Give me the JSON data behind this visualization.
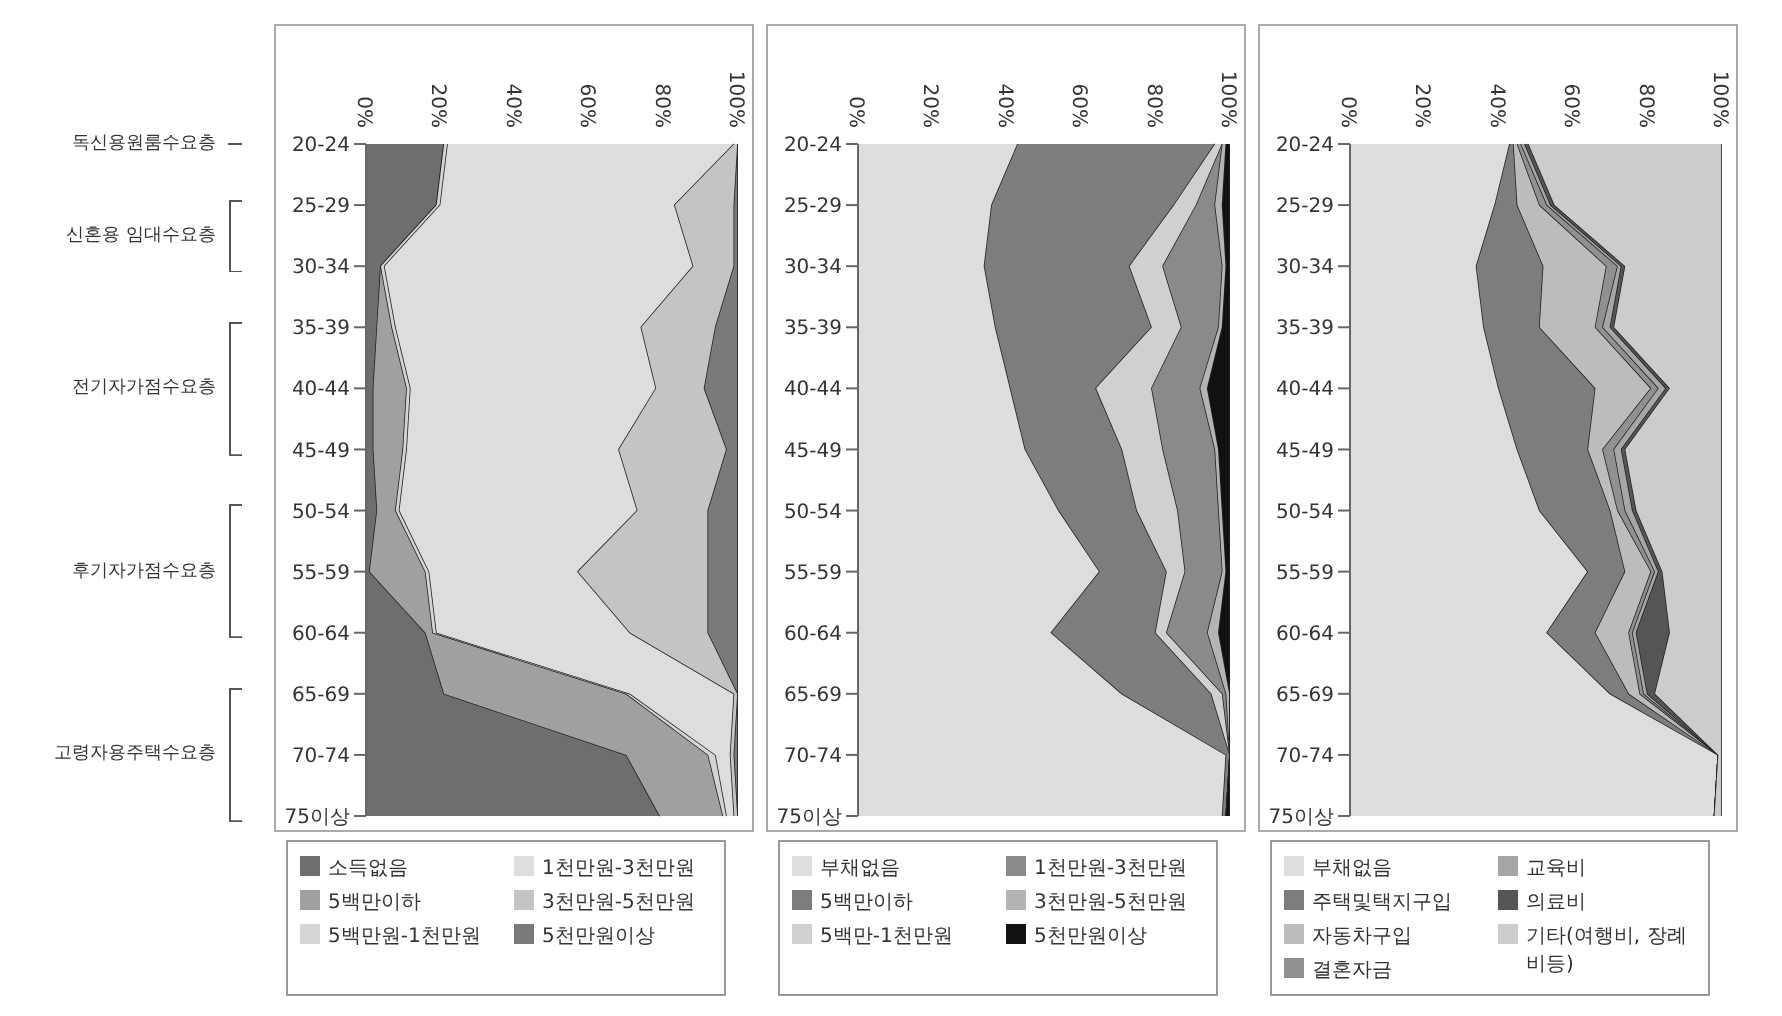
{
  "chart_data": [
    {
      "type": "area",
      "stacked": true,
      "orientation": "horizontal",
      "legend": "bottom",
      "categories": [
        "20-24",
        "25-29",
        "30-34",
        "35-39",
        "40-44",
        "45-49",
        "50-54",
        "55-59",
        "60-64",
        "65-69",
        "70-74",
        "75이상"
      ],
      "xlim": [
        0,
        100
      ],
      "xticks": [
        {
          "value": 0,
          "label": "0%"
        },
        {
          "value": 20,
          "label": "20%"
        },
        {
          "value": 40,
          "label": "40%"
        },
        {
          "value": 60,
          "label": "60%"
        },
        {
          "value": 80,
          "label": "80%"
        },
        {
          "value": 100,
          "label": "100%"
        }
      ],
      "annotations": [
        "독신용원룸수요층",
        "신혼용 임대수요층",
        "전기자가점수요층",
        "후기자가점수요층",
        "고령자용주택수요층"
      ],
      "series": [
        {
          "name": "소득없음",
          "color": "#6e6e6e",
          "values": [
            21,
            19,
            4,
            3,
            2,
            2,
            3,
            1,
            16,
            21,
            70,
            79
          ]
        },
        {
          "name": "5백만이하",
          "color": "#a0a0a0",
          "values": [
            0,
            0,
            0,
            4,
            9,
            8,
            5,
            15,
            2,
            49,
            22,
            17
          ]
        },
        {
          "name": "5백만원-1천만원",
          "color": "#d4d4d4",
          "values": [
            1,
            1,
            1,
            1,
            1,
            1,
            1,
            1,
            1,
            1,
            2,
            1
          ]
        },
        {
          "name": "1천만원-3천만원",
          "color": "#dddddd",
          "values": [
            77,
            63,
            83,
            66,
            66,
            57,
            64,
            40,
            52,
            28,
            4,
            2
          ]
        },
        {
          "name": "3천만원-5천만원",
          "color": "#c4c4c4",
          "values": [
            1,
            16,
            11,
            20,
            13,
            29,
            19,
            35,
            21,
            1,
            1,
            1
          ]
        },
        {
          "name": "5천만원이상",
          "color": "#7a7a7a",
          "values": [
            0,
            1,
            1,
            6,
            9,
            3,
            8,
            8,
            8,
            0,
            1,
            0
          ]
        }
      ]
    },
    {
      "type": "area",
      "stacked": true,
      "orientation": "horizontal",
      "legend": "bottom",
      "categories": [
        "20-24",
        "25-29",
        "30-34",
        "35-39",
        "40-44",
        "45-49",
        "50-54",
        "55-59",
        "60-64",
        "65-69",
        "70-74",
        "75이상"
      ],
      "xlim": [
        0,
        100
      ],
      "xticks": [
        {
          "value": 0,
          "label": "0%"
        },
        {
          "value": 20,
          "label": "20%"
        },
        {
          "value": 40,
          "label": "40%"
        },
        {
          "value": 60,
          "label": "60%"
        },
        {
          "value": 80,
          "label": "80%"
        },
        {
          "value": 100,
          "label": "100%"
        }
      ],
      "series": [
        {
          "name": "부채없음",
          "color": "#dddddd",
          "values": [
            43,
            36,
            34,
            37,
            41,
            45,
            54,
            65,
            52,
            71,
            99,
            98
          ]
        },
        {
          "name": "5백만이하",
          "color": "#7d7d7d",
          "values": [
            53,
            49,
            39,
            42,
            23,
            26,
            21,
            18,
            28,
            24,
            1,
            1
          ]
        },
        {
          "name": "5백만-1천만원",
          "color": "#d0d0d0",
          "values": [
            2,
            6,
            9,
            8,
            15,
            11,
            11,
            5,
            3,
            3,
            0,
            0
          ]
        },
        {
          "name": "1천만원-3천만원",
          "color": "#8a8a8a",
          "values": [
            0,
            5,
            16,
            10,
            13,
            14,
            11,
            10,
            11,
            1,
            0,
            0
          ]
        },
        {
          "name": "3천만원-5천만원",
          "color": "#b4b4b4",
          "values": [
            1,
            2,
            1,
            1,
            2,
            1,
            1,
            1,
            3,
            1,
            0,
            0
          ]
        },
        {
          "name": "5천만원이상",
          "color": "#111111",
          "values": [
            1,
            2,
            1,
            2,
            6,
            3,
            2,
            1,
            3,
            0,
            0,
            1
          ]
        }
      ]
    },
    {
      "type": "area",
      "stacked": true,
      "orientation": "horizontal",
      "legend": "bottom",
      "categories": [
        "20-24",
        "25-29",
        "30-34",
        "35-39",
        "40-44",
        "45-49",
        "50-54",
        "55-59",
        "60-64",
        "65-69",
        "70-74",
        "75이상"
      ],
      "xlim": [
        0,
        100
      ],
      "xticks": [
        {
          "value": 0,
          "label": "0%"
        },
        {
          "value": 20,
          "label": "20%"
        },
        {
          "value": 40,
          "label": "40%"
        },
        {
          "value": 60,
          "label": "60%"
        },
        {
          "value": 80,
          "label": "80%"
        },
        {
          "value": 100,
          "label": "100%"
        }
      ],
      "series": [
        {
          "name": "부채없음",
          "color": "#dddddd",
          "values": [
            43,
            39,
            34,
            36,
            40,
            45,
            51,
            64,
            53,
            70,
            99,
            98
          ]
        },
        {
          "name": "주택및택지구입",
          "color": "#7d7d7d",
          "values": [
            1,
            6,
            18,
            15,
            26,
            19,
            19,
            10,
            13,
            5,
            0,
            0
          ]
        },
        {
          "name": "자동차구입",
          "color": "#bcbcbc",
          "values": [
            1,
            6,
            17,
            15,
            15,
            4,
            2,
            7,
            9,
            3,
            0,
            0
          ]
        },
        {
          "name": "결혼자금",
          "color": "#909090",
          "values": [
            1,
            2,
            3,
            2,
            2,
            3,
            2,
            1,
            1,
            1,
            0,
            0
          ]
        },
        {
          "name": "교육비",
          "color": "#a6a6a6",
          "values": [
            1,
            1,
            1,
            2,
            2,
            2,
            2,
            1,
            1,
            1,
            0,
            0
          ]
        },
        {
          "name": "의료비",
          "color": "#555555",
          "values": [
            1,
            1,
            1,
            1,
            1,
            1,
            1,
            1,
            9,
            2,
            0,
            0
          ]
        },
        {
          "name": "기타(여행비, 장례비등)",
          "color": "#cccccc",
          "values": [
            52,
            45,
            26,
            29,
            14,
            26,
            23,
            16,
            14,
            18,
            1,
            2
          ]
        }
      ]
    }
  ]
}
